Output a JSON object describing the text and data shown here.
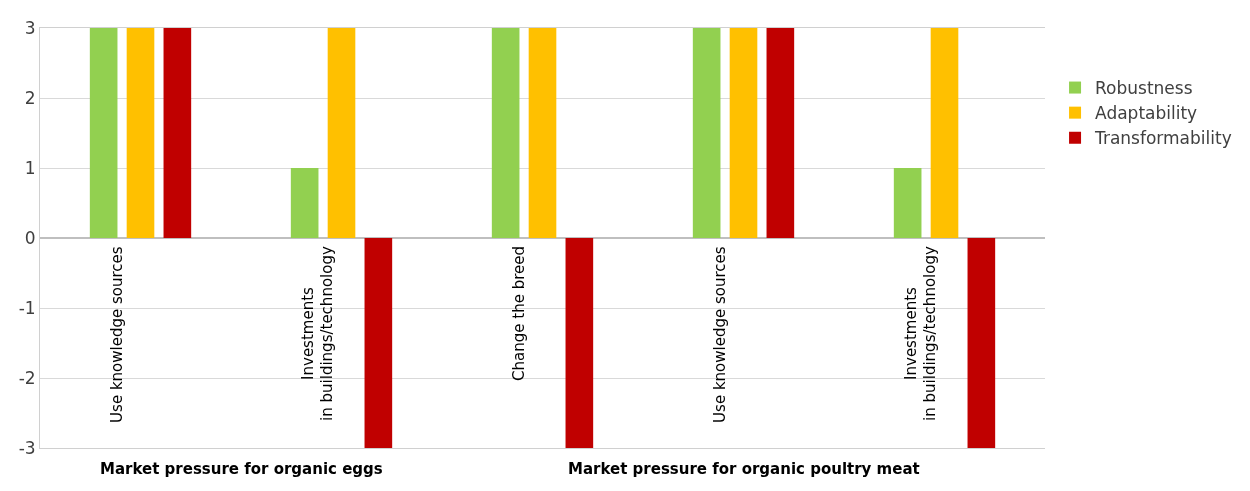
{
  "chart_data": {
    "type": "bar",
    "categories": [
      "Use knowledge sources",
      "Investments in buildings/technology",
      "Change the breed",
      "Use knowledge sources",
      "Investments in buildings/technology"
    ],
    "series": [
      {
        "name": "Robustness",
        "color": "#92d050",
        "values": [
          3,
          1,
          3,
          3,
          1
        ]
      },
      {
        "name": "Adaptability",
        "color": "#ffc000",
        "values": [
          3,
          3,
          3,
          3,
          3
        ]
      },
      {
        "name": "Transformability",
        "color": "#c00000",
        "values": [
          3,
          -3,
          -3,
          3,
          -3
        ]
      }
    ],
    "ylim": [
      -3,
      3
    ],
    "yticks": [
      -3,
      -2,
      -1,
      0,
      1,
      2,
      3
    ],
    "grid": "y",
    "legend": "right",
    "annotations": [
      "Market pressure for organic eggs",
      "Market pressure for organic poultry meat"
    ]
  }
}
